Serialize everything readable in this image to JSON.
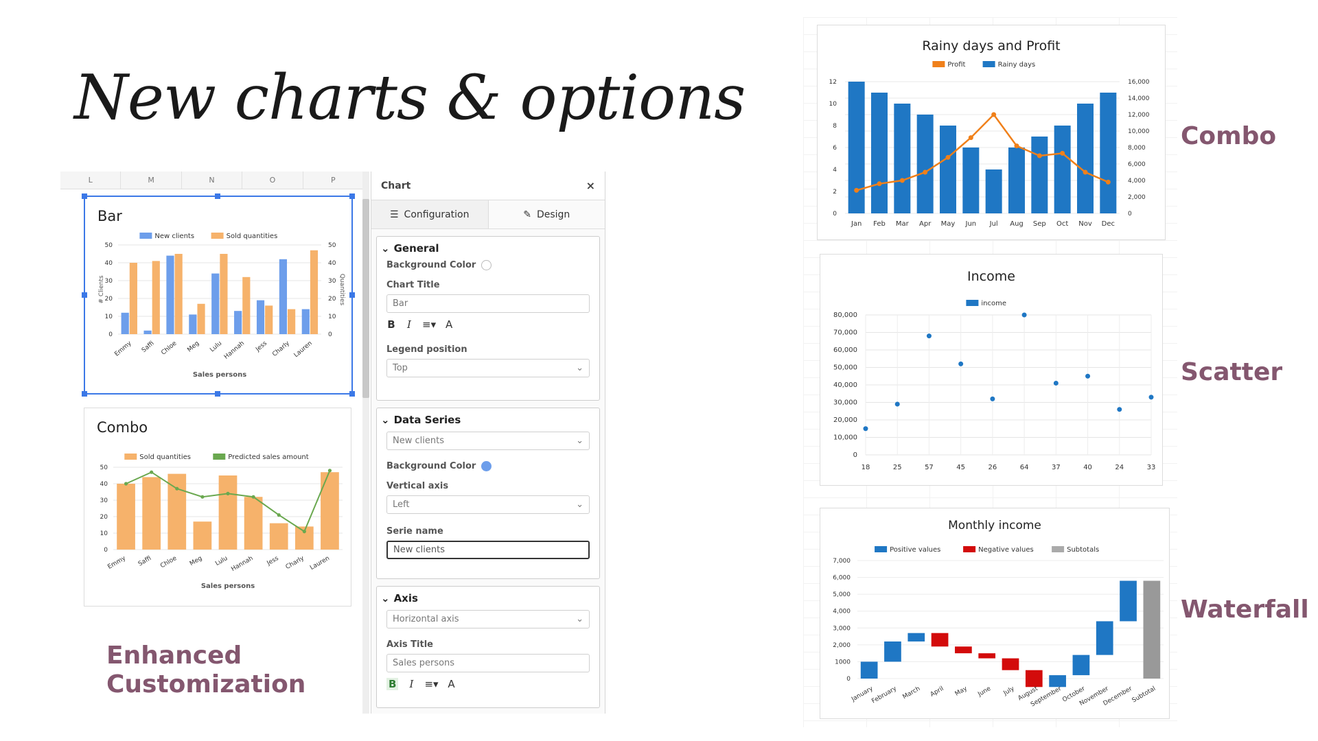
{
  "hero_title": "New charts & options",
  "labels": {
    "combo": "Combo",
    "scatter": "Scatter",
    "waterfall": "Waterfall",
    "enhanced_line1": "Enhanced",
    "enhanced_line2": "Customization"
  },
  "colors": {
    "accent": "#84576f",
    "blue": "#1f77c4",
    "orange": "#f2a65a",
    "green": "#6aa84f",
    "red": "#d30b0b",
    "gray": "#999999",
    "bar_blue": "#6d9eeb",
    "bar_orange": "#f6b26b"
  },
  "sheet": {
    "columns": [
      "L",
      "M",
      "N",
      "O",
      "P"
    ]
  },
  "panel": {
    "title": "Chart",
    "close": "×",
    "tabs": [
      {
        "label": "Configuration",
        "icon": "sliders-icon"
      },
      {
        "label": "Design",
        "icon": "brush-icon"
      }
    ],
    "general": {
      "title": "General",
      "bg_color_label": "Background Color",
      "chart_title_label": "Chart Title",
      "chart_title_value": "Bar",
      "fmt_bold": "B",
      "fmt_italic": "I",
      "fmt_align": "≡▾",
      "fmt_color": "A",
      "legend_label": "Legend position",
      "legend_value": "Top"
    },
    "data_series": {
      "title": "Data Series",
      "series_value": "New clients",
      "bg_color_label": "Background Color",
      "vaxis_label": "Vertical axis",
      "vaxis_value": "Left",
      "serie_name_label": "Serie name",
      "serie_name_value": "New clients"
    },
    "axis": {
      "title": "Axis",
      "axis_value": "Horizontal axis",
      "axis_title_label": "Axis Title",
      "axis_title_value": "Sales persons",
      "fmt_bold": "B",
      "fmt_italic": "I",
      "fmt_align": "≡▾",
      "fmt_color": "A"
    }
  },
  "chart_data": [
    {
      "id": "bar",
      "type": "bar",
      "title": "Bar",
      "categories": [
        "Emmy",
        "Saffi",
        "Chloe",
        "Meg",
        "Lulu",
        "Hannah",
        "Jess",
        "Charly",
        "Lauren"
      ],
      "series": [
        {
          "name": "New clients",
          "values": [
            12,
            2,
            44,
            11,
            34,
            13,
            19,
            42,
            14
          ]
        },
        {
          "name": "Sold quantities",
          "values": [
            40,
            41,
            45,
            17,
            45,
            32,
            16,
            14,
            47
          ]
        }
      ],
      "xlabel": "Sales persons",
      "ylabel": "# Clients",
      "y2label": "Quantities",
      "ylim": [
        0,
        50
      ],
      "y2lim": [
        0,
        50
      ],
      "yticks": [
        "0",
        "10",
        "20",
        "30",
        "40",
        "50"
      ],
      "legend": "top"
    },
    {
      "id": "combo_small",
      "type": "combo",
      "title": "Combo",
      "categories": [
        "Emmy",
        "Saffi",
        "Chloe",
        "Meg",
        "Lulu",
        "Hannah",
        "Jess",
        "Charly",
        "Lauren"
      ],
      "series": [
        {
          "name": "Sold quantities",
          "type": "bar",
          "values": [
            40,
            44,
            46,
            17,
            45,
            32,
            16,
            14,
            47
          ]
        },
        {
          "name": "Predicted sales amount",
          "type": "line",
          "values": [
            40,
            47,
            37,
            32,
            34,
            32,
            21,
            11,
            48
          ]
        }
      ],
      "xlabel": "Sales persons",
      "ylim": [
        0,
        50
      ],
      "yticks": [
        "0",
        "10",
        "20",
        "30",
        "40",
        "50"
      ],
      "legend": "top"
    },
    {
      "id": "combo",
      "type": "combo",
      "title": "Rainy days and Profit",
      "categories": [
        "Jan",
        "Feb",
        "Mar",
        "Apr",
        "May",
        "Jun",
        "Jul",
        "Aug",
        "Sep",
        "Oct",
        "Nov",
        "Dec"
      ],
      "series": [
        {
          "name": "Profit",
          "type": "line",
          "axis": "right",
          "values": [
            2800,
            3600,
            4000,
            5000,
            6800,
            9200,
            12000,
            8200,
            7000,
            7300,
            5000,
            3800
          ]
        },
        {
          "name": "Rainy days",
          "type": "bar",
          "axis": "left",
          "values": [
            12,
            11,
            10,
            9,
            8,
            6,
            4,
            6,
            7,
            8,
            10,
            11
          ]
        }
      ],
      "ylim": [
        0,
        12
      ],
      "y2lim": [
        0,
        16000
      ],
      "yticks": [
        "0",
        "2",
        "4",
        "6",
        "8",
        "10",
        "12"
      ],
      "y2ticks": [
        "0",
        "2,000",
        "4,000",
        "6,000",
        "8,000",
        "10,000",
        "12,000",
        "14,000",
        "16,000"
      ],
      "legend": "top"
    },
    {
      "id": "scatter",
      "type": "scatter",
      "title": "Income",
      "categories": [
        "18",
        "25",
        "57",
        "45",
        "26",
        "64",
        "37",
        "40",
        "24",
        "33"
      ],
      "series": [
        {
          "name": "income",
          "values": [
            15000,
            29000,
            68000,
            52000,
            32000,
            80000,
            41000,
            45000,
            26000,
            33000
          ]
        }
      ],
      "ylim": [
        0,
        80000
      ],
      "yticks": [
        "0",
        "10,000",
        "20,000",
        "30,000",
        "40,000",
        "50,000",
        "60,000",
        "70,000",
        "80,000"
      ],
      "legend": "top"
    },
    {
      "id": "waterfall",
      "type": "waterfall",
      "title": "Monthly income",
      "categories": [
        "January",
        "February",
        "March",
        "April",
        "May",
        "June",
        "July",
        "August",
        "September",
        "October",
        "November",
        "December",
        "Subtotal"
      ],
      "deltas": [
        1000,
        1200,
        500,
        -800,
        -400,
        -300,
        -700,
        -1000,
        700,
        1200,
        2000,
        2400,
        null
      ],
      "legend_items": [
        "Positive values",
        "Negative values",
        "Subtotals"
      ],
      "ylim": [
        0,
        7000
      ],
      "yticks": [
        "0",
        "1000",
        "2,000",
        "3,000",
        "4,000",
        "5,000",
        "6,000",
        "7,000"
      ],
      "legend": "top"
    }
  ]
}
